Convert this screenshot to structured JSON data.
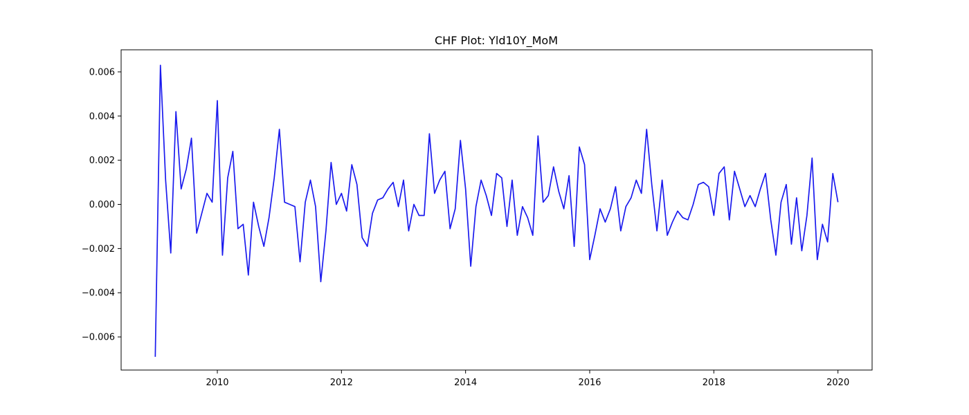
{
  "chart_data": {
    "type": "line",
    "title": "CHF Plot: Yld10Y_MoM",
    "xlabel": "",
    "ylabel": "",
    "xlim": [
      2008.45,
      2020.55
    ],
    "ylim": [
      -0.0075,
      0.007
    ],
    "x_ticks": [
      2010,
      2012,
      2014,
      2016,
      2018,
      2020
    ],
    "x_tick_labels": [
      "2010",
      "2012",
      "2014",
      "2016",
      "2018",
      "2020"
    ],
    "y_ticks": [
      -0.006,
      -0.004,
      -0.002,
      0.0,
      0.002,
      0.004,
      0.006
    ],
    "y_tick_labels": [
      "−0.006",
      "−0.004",
      "−0.002",
      "0.000",
      "0.002",
      "0.004",
      "0.006"
    ],
    "grid": false,
    "line_color": "#1a1aee",
    "series": [
      {
        "x": [
          2009.0,
          2009.083,
          2009.167,
          2009.25,
          2009.333,
          2009.417,
          2009.5,
          2009.583,
          2009.667,
          2009.75,
          2009.833,
          2009.917,
          2010.0,
          2010.083,
          2010.167,
          2010.25,
          2010.333,
          2010.417,
          2010.5,
          2010.583,
          2010.667,
          2010.75,
          2010.833,
          2010.917,
          2011.0,
          2011.083,
          2011.167,
          2011.25,
          2011.333,
          2011.417,
          2011.5,
          2011.583,
          2011.667,
          2011.75,
          2011.833,
          2011.917,
          2012.0,
          2012.083,
          2012.167,
          2012.25,
          2012.333,
          2012.417,
          2012.5,
          2012.583,
          2012.667,
          2012.75,
          2012.833,
          2012.917,
          2013.0,
          2013.083,
          2013.167,
          2013.25,
          2013.333,
          2013.417,
          2013.5,
          2013.583,
          2013.667,
          2013.75,
          2013.833,
          2013.917,
          2014.0,
          2014.083,
          2014.167,
          2014.25,
          2014.333,
          2014.417,
          2014.5,
          2014.583,
          2014.667,
          2014.75,
          2014.833,
          2014.917,
          2015.0,
          2015.083,
          2015.167,
          2015.25,
          2015.333,
          2015.417,
          2015.5,
          2015.583,
          2015.667,
          2015.75,
          2015.833,
          2015.917,
          2016.0,
          2016.083,
          2016.167,
          2016.25,
          2016.333,
          2016.417,
          2016.5,
          2016.583,
          2016.667,
          2016.75,
          2016.833,
          2016.917,
          2017.0,
          2017.083,
          2017.167,
          2017.25,
          2017.333,
          2017.417,
          2017.5,
          2017.583,
          2017.667,
          2017.75,
          2017.833,
          2017.917,
          2018.0,
          2018.083,
          2018.167,
          2018.25,
          2018.333,
          2018.417,
          2018.5,
          2018.583,
          2018.667,
          2018.75,
          2018.833,
          2018.917,
          2019.0,
          2019.083,
          2019.167,
          2019.25,
          2019.333,
          2019.417,
          2019.5,
          2019.583,
          2019.667,
          2019.75,
          2019.833,
          2019.917,
          2020.0
        ],
        "y": [
          -0.0069,
          0.0063,
          0.0011,
          -0.0022,
          0.0042,
          0.0007,
          0.0016,
          0.003,
          -0.0013,
          -0.0004,
          0.0005,
          0.0001,
          0.0047,
          -0.0023,
          0.0012,
          0.0024,
          -0.0011,
          -0.0009,
          -0.0032,
          0.0001,
          -0.001,
          -0.0019,
          -0.0006,
          0.0012,
          0.0034,
          0.0001,
          0.0,
          -0.0001,
          -0.0026,
          0.0001,
          0.0011,
          -0.0001,
          -0.0035,
          -0.0012,
          0.0019,
          0.0,
          0.0005,
          -0.0003,
          0.0018,
          0.0009,
          -0.0015,
          -0.0019,
          -0.0004,
          0.0002,
          0.0003,
          0.0007,
          0.001,
          -0.0001,
          0.0011,
          -0.0012,
          0.0,
          -0.0005,
          -0.0005,
          0.0032,
          0.0005,
          0.0011,
          0.0015,
          -0.0011,
          -0.0002,
          0.0029,
          0.0007,
          -0.0028,
          -0.0001,
          0.0011,
          0.0004,
          -0.0005,
          0.0014,
          0.0012,
          -0.001,
          0.0011,
          -0.0014,
          -0.0001,
          -0.0006,
          -0.0014,
          0.0031,
          0.0001,
          0.0004,
          0.0017,
          0.0006,
          -0.0002,
          0.0013,
          -0.0019,
          0.0026,
          0.0018,
          -0.0025,
          -0.0014,
          -0.0002,
          -0.0008,
          -0.0002,
          0.0008,
          -0.0012,
          -0.0001,
          0.0003,
          0.0011,
          0.0005,
          0.0034,
          0.0009,
          -0.0012,
          0.0011,
          -0.0014,
          -0.0008,
          -0.0003,
          -0.0006,
          -0.0007,
          0.0,
          0.0009,
          0.001,
          0.0008,
          -0.0005,
          0.0014,
          0.0017,
          -0.0007,
          0.0015,
          0.0007,
          -0.0001,
          0.0004,
          -0.0001,
          0.0007,
          0.0014,
          -0.0007,
          -0.0023,
          0.0001,
          0.0009,
          -0.0018,
          0.0003,
          -0.0021,
          -0.0005,
          0.0021,
          -0.0025,
          -0.0009,
          -0.0017,
          0.0014,
          0.0001
        ]
      }
    ]
  }
}
